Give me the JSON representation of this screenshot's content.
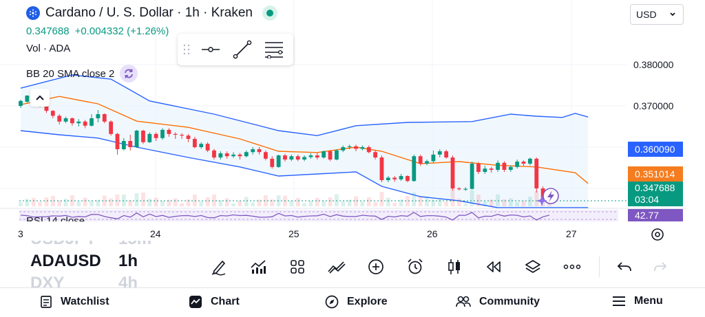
{
  "header": {
    "title": "Cardano / U. S. Dollar · 1h · Kraken",
    "price": "0.347688",
    "change": "+0.004332 (+1.26%)",
    "volume_label": "Vol · ADA",
    "indicator_label": "BB 20 SMA close 2"
  },
  "currency_select": {
    "value": "USD"
  },
  "price_axis": {
    "ticks": [
      "0.380000",
      "0.370000"
    ]
  },
  "price_labels": {
    "bb_upper": "0.360090",
    "bb_basis": "0.351014",
    "last_price": "0.347688",
    "countdown": "03:04",
    "rsi": "42.77"
  },
  "time_axis": {
    "ticks": [
      "3",
      "24",
      "25",
      "26",
      "27"
    ]
  },
  "rsi_label": "RSI 14 close",
  "symbols": [
    {
      "symbol": "USDJPY",
      "interval": "15m"
    },
    {
      "symbol": "ADAUSD",
      "interval": "1h"
    },
    {
      "symbol": "DXY",
      "interval": "4h"
    }
  ],
  "bottom_nav": {
    "watchlist": "Watchlist",
    "chart": "Chart",
    "explore": "Explore",
    "community": "Community",
    "menu": "Menu"
  },
  "colors": {
    "up": "#089981",
    "down": "#f23645",
    "bb_band": "#2962ff",
    "bb_basis": "#ff6d00",
    "rsi_line": "#7e57c2",
    "accent": "#2962ff"
  },
  "chart_data": {
    "type": "candlestick",
    "price_range": [
      0.3445,
      0.3865
    ],
    "candles": [
      [
        0.37,
        0.3712,
        0.3695,
        0.3715
      ],
      [
        0.371,
        0.3725,
        0.3706,
        0.3726
      ],
      [
        0.3722,
        0.3717,
        0.3712,
        0.3727
      ],
      [
        0.3717,
        0.3707,
        0.3697,
        0.3719
      ],
      [
        0.3707,
        0.3688,
        0.3683,
        0.3712
      ],
      [
        0.3688,
        0.3676,
        0.367,
        0.369
      ],
      [
        0.3676,
        0.3662,
        0.3655,
        0.368
      ],
      [
        0.3662,
        0.367,
        0.3658,
        0.3674
      ],
      [
        0.367,
        0.3658,
        0.3652,
        0.3672
      ],
      [
        0.3658,
        0.3662,
        0.365,
        0.3668
      ],
      [
        0.3662,
        0.3652,
        0.3646,
        0.3666
      ],
      [
        0.3652,
        0.367,
        0.365,
        0.368
      ],
      [
        0.367,
        0.368,
        0.366,
        0.369
      ],
      [
        0.368,
        0.3662,
        0.3658,
        0.3682
      ],
      [
        0.3662,
        0.3632,
        0.3628,
        0.3665
      ],
      [
        0.3632,
        0.3595,
        0.3582,
        0.3635
      ],
      [
        0.3595,
        0.3615,
        0.3592,
        0.3622
      ],
      [
        0.3615,
        0.36,
        0.3592,
        0.363
      ],
      [
        0.36,
        0.364,
        0.3598,
        0.3642
      ],
      [
        0.364,
        0.3612,
        0.3608,
        0.3642
      ],
      [
        0.3612,
        0.3632,
        0.361,
        0.3636
      ],
      [
        0.3632,
        0.3622,
        0.3615,
        0.3636
      ],
      [
        0.3622,
        0.3642,
        0.3618,
        0.3646
      ],
      [
        0.3642,
        0.3632,
        0.3625,
        0.3646
      ],
      [
        0.3632,
        0.363,
        0.362,
        0.3636
      ],
      [
        0.363,
        0.3628,
        0.362,
        0.3634
      ],
      [
        0.3628,
        0.362,
        0.3612,
        0.3632
      ],
      [
        0.362,
        0.36,
        0.3597,
        0.3625
      ],
      [
        0.36,
        0.3608,
        0.3596,
        0.3612
      ],
      [
        0.3608,
        0.3592,
        0.3588,
        0.3612
      ],
      [
        0.3592,
        0.3575,
        0.357,
        0.3596
      ],
      [
        0.3575,
        0.3585,
        0.357,
        0.359
      ],
      [
        0.3585,
        0.3578,
        0.3572,
        0.359
      ],
      [
        0.3578,
        0.3582,
        0.3574,
        0.3588
      ],
      [
        0.3582,
        0.3578,
        0.357,
        0.3586
      ],
      [
        0.3578,
        0.3588,
        0.3575,
        0.3592
      ],
      [
        0.3588,
        0.3595,
        0.3582,
        0.36
      ],
      [
        0.3595,
        0.3588,
        0.3582,
        0.36
      ],
      [
        0.3588,
        0.3572,
        0.3568,
        0.3592
      ],
      [
        0.3572,
        0.3552,
        0.3548,
        0.3578
      ],
      [
        0.3552,
        0.358,
        0.355,
        0.3582
      ],
      [
        0.358,
        0.357,
        0.3565,
        0.3584
      ],
      [
        0.357,
        0.3578,
        0.3566,
        0.3582
      ],
      [
        0.3578,
        0.357,
        0.3566,
        0.3582
      ],
      [
        0.357,
        0.3576,
        0.3566,
        0.358
      ],
      [
        0.3576,
        0.358,
        0.3572,
        0.3585
      ],
      [
        0.358,
        0.3575,
        0.357,
        0.3586
      ],
      [
        0.3575,
        0.359,
        0.3572,
        0.3592
      ],
      [
        0.359,
        0.357,
        0.3566,
        0.3593
      ],
      [
        0.357,
        0.3592,
        0.3568,
        0.3595
      ],
      [
        0.3592,
        0.36,
        0.3588,
        0.3604
      ],
      [
        0.36,
        0.3602,
        0.3595,
        0.3606
      ],
      [
        0.3602,
        0.3596,
        0.359,
        0.3606
      ],
      [
        0.3596,
        0.36,
        0.3592,
        0.3604
      ],
      [
        0.36,
        0.3588,
        0.3585,
        0.3604
      ],
      [
        0.3588,
        0.3575,
        0.357,
        0.3592
      ],
      [
        0.3575,
        0.352,
        0.3515,
        0.358
      ],
      [
        0.352,
        0.3526,
        0.3515,
        0.353
      ],
      [
        0.3526,
        0.3522,
        0.3516,
        0.353
      ],
      [
        0.3522,
        0.353,
        0.3518,
        0.3535
      ],
      [
        0.353,
        0.3518,
        0.3515,
        0.3532
      ],
      [
        0.3518,
        0.3578,
        0.3516,
        0.3582
      ],
      [
        0.3578,
        0.356,
        0.3555,
        0.3582
      ],
      [
        0.356,
        0.3566,
        0.3556,
        0.357
      ],
      [
        0.3566,
        0.3582,
        0.3562,
        0.3592
      ],
      [
        0.3582,
        0.359,
        0.3575,
        0.3595
      ],
      [
        0.359,
        0.3575,
        0.3572,
        0.3594
      ],
      [
        0.3575,
        0.35,
        0.3495,
        0.358
      ],
      [
        0.35,
        0.3498,
        0.3495,
        0.3503
      ],
      [
        0.3498,
        0.3499,
        0.3494,
        0.3503
      ],
      [
        0.3499,
        0.356,
        0.3497,
        0.3565
      ],
      [
        0.356,
        0.354,
        0.3535,
        0.3564
      ],
      [
        0.354,
        0.3548,
        0.3535,
        0.3555
      ],
      [
        0.3548,
        0.3545,
        0.3538,
        0.3552
      ],
      [
        0.3545,
        0.3562,
        0.354,
        0.3568
      ],
      [
        0.3562,
        0.3545,
        0.354,
        0.3566
      ],
      [
        0.3545,
        0.3552,
        0.354,
        0.3556
      ],
      [
        0.3552,
        0.3565,
        0.3548,
        0.357
      ],
      [
        0.3565,
        0.356,
        0.3555,
        0.3568
      ],
      [
        0.356,
        0.3572,
        0.3556,
        0.3575
      ],
      [
        0.3572,
        0.35,
        0.349,
        0.3575
      ],
      [
        0.35,
        0.3478,
        0.3472,
        0.3505
      ],
      [
        0.3478,
        0.3477,
        0.3472,
        0.3482
      ]
    ],
    "bb_upper": [
      [
        0,
        0.3743
      ],
      [
        8,
        0.3775
      ],
      [
        14,
        0.3765
      ],
      [
        20,
        0.3712
      ],
      [
        30,
        0.368
      ],
      [
        40,
        0.364
      ],
      [
        46,
        0.3628
      ],
      [
        52,
        0.3652
      ],
      [
        60,
        0.366
      ],
      [
        70,
        0.3662
      ],
      [
        76,
        0.368
      ],
      [
        80,
        0.3675
      ],
      [
        84,
        0.3672
      ],
      [
        86,
        0.3682
      ],
      [
        88,
        0.3673
      ]
    ],
    "bb_basis": [
      [
        0,
        0.3703
      ],
      [
        6,
        0.3723
      ],
      [
        12,
        0.3705
      ],
      [
        18,
        0.3663
      ],
      [
        26,
        0.3648
      ],
      [
        34,
        0.362
      ],
      [
        40,
        0.359
      ],
      [
        46,
        0.3587
      ],
      [
        52,
        0.36
      ],
      [
        56,
        0.359
      ],
      [
        62,
        0.356
      ],
      [
        68,
        0.3565
      ],
      [
        74,
        0.3556
      ],
      [
        80,
        0.3552
      ],
      [
        86,
        0.3538
      ],
      [
        88,
        0.3512
      ]
    ],
    "bb_lower": [
      [
        0,
        0.364
      ],
      [
        6,
        0.363
      ],
      [
        12,
        0.3622
      ],
      [
        18,
        0.36
      ],
      [
        26,
        0.3575
      ],
      [
        34,
        0.3552
      ],
      [
        40,
        0.353
      ],
      [
        46,
        0.3535
      ],
      [
        52,
        0.354
      ],
      [
        56,
        0.3505
      ],
      [
        62,
        0.348
      ],
      [
        68,
        0.347
      ],
      [
        74,
        0.345
      ],
      [
        80,
        0.344
      ],
      [
        86,
        0.343
      ],
      [
        88,
        0.342
      ]
    ]
  }
}
